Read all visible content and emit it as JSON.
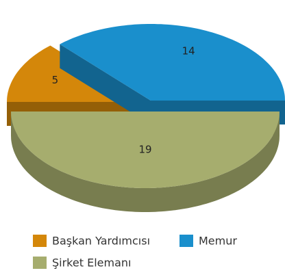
{
  "chart_data": {
    "type": "pie",
    "categories": [
      "Başkan Yardımcısı",
      "Memur",
      "Şirket Elemanı"
    ],
    "values": [
      5,
      14,
      19
    ],
    "colors": [
      "#d4870a",
      "#1a8fcc",
      "#a6ad6e"
    ],
    "legend": "bottom"
  }
}
